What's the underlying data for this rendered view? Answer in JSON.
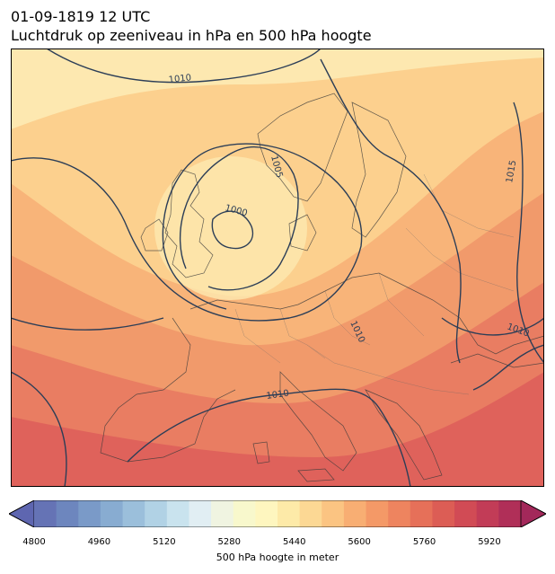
{
  "header": {
    "datetime": "01-09-1819 12 UTC",
    "subtitle": "Luchtdruk op zeeniveau in hPa en 500 hPa hoogte"
  },
  "map": {
    "region": "Europe",
    "isobar_labels": [
      "1010",
      "1005",
      "1000",
      "1015",
      "1010",
      "1010",
      "1010"
    ],
    "fill_colors": [
      "#fde8b0",
      "#fcd08e",
      "#f8b479",
      "#f19a6b",
      "#e97d62",
      "#df625b"
    ],
    "isobar_color": "#2c3e57"
  },
  "colorbar": {
    "ticks": [
      "4800",
      "4960",
      "5120",
      "5280",
      "5440",
      "5600",
      "5760",
      "5920"
    ],
    "label": "500 hPa hoogte in meter",
    "colors": [
      "#6573b5",
      "#6d86be",
      "#7a9ac8",
      "#88acd1",
      "#9bbfdb",
      "#b1d2e5",
      "#c9e3ee",
      "#e1eef3",
      "#f0f4e1",
      "#f8f8cc",
      "#fef6bf",
      "#fdeaa8",
      "#fcd894",
      "#fbc482",
      "#f8ae73",
      "#f49967",
      "#ee845f",
      "#e67059",
      "#dc5d55",
      "#d14b55",
      "#c23c57",
      "#b02f58"
    ],
    "extend_low": "#5e66b0",
    "extend_high": "#a3285a"
  }
}
